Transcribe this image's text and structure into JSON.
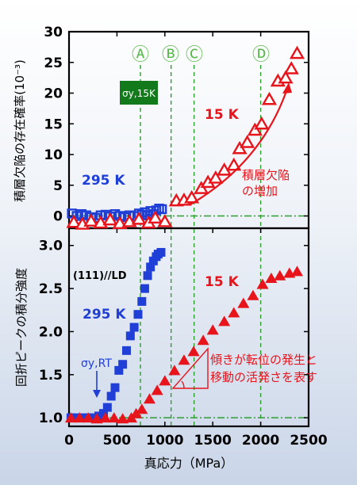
{
  "chart_data": [
    {
      "type": "scatter",
      "panel": "top",
      "ylabel": "積層欠陥の存在確率(10⁻³)",
      "xlim": [
        0,
        2500
      ],
      "ylim": [
        -2,
        30
      ],
      "yticks": [
        0,
        5,
        10,
        15,
        20,
        25,
        30
      ],
      "grid": false,
      "series": [
        {
          "name": "295 K",
          "marker": "open-square",
          "color": "#1f3fd6",
          "x": [
            30,
            80,
            130,
            180,
            230,
            280,
            330,
            380,
            430,
            480,
            530,
            580,
            630,
            680,
            730,
            760,
            790,
            820,
            850,
            880,
            910,
            940,
            970
          ],
          "y": [
            0.4,
            0.0,
            0.3,
            0.1,
            -0.2,
            -0.3,
            0.1,
            0.2,
            -0.1,
            0.3,
            0.0,
            -0.2,
            0.1,
            0.0,
            0.4,
            0.2,
            0.6,
            0.1,
            0.8,
            0.3,
            0.9,
            1.2,
            1.1
          ]
        },
        {
          "name": "15 K",
          "marker": "open-triangle",
          "color": "#e8141c",
          "x": [
            50,
            140,
            230,
            330,
            430,
            530,
            630,
            730,
            830,
            900,
            1000,
            1120,
            1200,
            1280,
            1380,
            1450,
            1530,
            1620,
            1720,
            1780,
            1860,
            1940,
            2010,
            2090,
            2180,
            2260,
            2320,
            2380
          ],
          "y": [
            -1.0,
            -1.3,
            -0.8,
            -1.1,
            -0.6,
            -1.2,
            -0.9,
            -0.5,
            -1.1,
            -0.3,
            -0.9,
            2.5,
            2.6,
            3.0,
            4.5,
            5.5,
            6.2,
            7.5,
            8.3,
            11.0,
            12.0,
            14.0,
            15.0,
            19.0,
            22.0,
            22.5,
            24.0,
            26.5
          ]
        }
      ],
      "annotations": {
        "sigma_label": "σy,15K",
        "trend_label_line1": "積層欠陥",
        "trend_label_line2": "の増加",
        "series_label_295": "295 K",
        "series_label_15": "15 K"
      }
    },
    {
      "type": "scatter",
      "panel": "bottom",
      "xlabel": "真応力（MPa）",
      "ylabel": "回折ピークの積分強度",
      "xlim": [
        0,
        2500
      ],
      "ylim": [
        0.9,
        3.2
      ],
      "xticks": [
        0,
        500,
        1000,
        1500,
        2000,
        2500
      ],
      "yticks": [
        1.0,
        1.5,
        2.0,
        2.5,
        3.0
      ],
      "grid": false,
      "series": [
        {
          "name": "295 K",
          "marker": "filled-square",
          "color": "#1f3fd6",
          "x": [
            20,
            80,
            140,
            200,
            260,
            310,
            360,
            400,
            440,
            480,
            520,
            560,
            600,
            640,
            680,
            720,
            760,
            790,
            820,
            850,
            880,
            910,
            930,
            960
          ],
          "y": [
            1.0,
            1.0,
            1.0,
            1.0,
            1.0,
            1.02,
            1.05,
            1.12,
            1.25,
            1.35,
            1.55,
            1.62,
            1.78,
            1.95,
            2.05,
            2.2,
            2.35,
            2.5,
            2.65,
            2.75,
            2.82,
            2.87,
            2.9,
            2.92
          ]
        },
        {
          "name": "15 K",
          "marker": "filled-triangle",
          "color": "#e8141c",
          "x": [
            20,
            110,
            200,
            290,
            380,
            470,
            560,
            650,
            700,
            760,
            840,
            920,
            1000,
            1100,
            1200,
            1300,
            1400,
            1500,
            1620,
            1720,
            1820,
            1920,
            2020,
            2110,
            2200,
            2300,
            2380
          ],
          "y": [
            1.0,
            1.0,
            1.0,
            0.99,
            1.0,
            1.0,
            0.99,
            1.0,
            1.05,
            1.1,
            1.22,
            1.32,
            1.43,
            1.55,
            1.67,
            1.77,
            1.9,
            2.02,
            2.12,
            2.22,
            2.33,
            2.42,
            2.55,
            2.62,
            2.65,
            2.68,
            2.7
          ]
        }
      ],
      "annotations": {
        "direction_label": "(111)//LD",
        "sigma_label": "σy,RT",
        "note_line1": "傾きが転位の発生と",
        "note_line2": "移動の活発さを表す",
        "series_label_295": "295 K",
        "series_label_15": "15 K"
      }
    }
  ],
  "stage_markers": [
    {
      "label": "Ⓐ",
      "x": 745
    },
    {
      "label": "Ⓑ",
      "x": 1065
    },
    {
      "label": "Ⓒ",
      "x": 1305
    },
    {
      "label": "Ⓓ",
      "x": 2000
    }
  ],
  "baseline": {
    "top_y": 0.0,
    "bottom_y": 1.0
  },
  "colors": {
    "blue": "#1f3fd6",
    "red": "#e8141c",
    "green": "#2e9e2e",
    "sigma_box": "#137a1c",
    "stage_text": "#56b848"
  }
}
